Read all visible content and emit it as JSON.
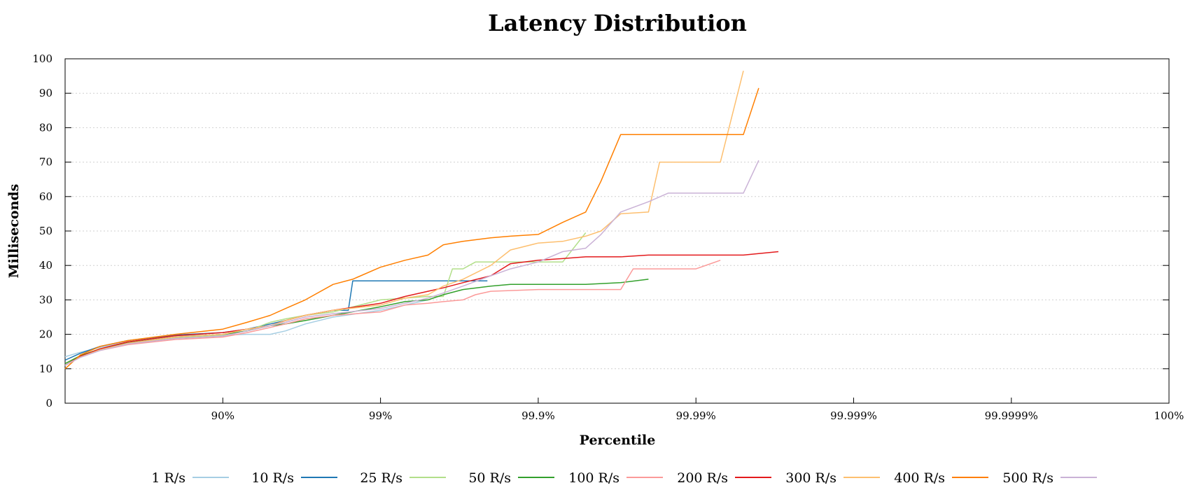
{
  "chart_data": {
    "type": "line",
    "title": "Latency Distribution",
    "xlabel": "Percentile",
    "ylabel": "Milliseconds",
    "x_scale": "log-percentile",
    "xlim": [
      "0%",
      "100%"
    ],
    "ylim": [
      0,
      100
    ],
    "yticks": [
      0,
      10,
      20,
      30,
      40,
      50,
      60,
      70,
      80,
      90,
      100
    ],
    "x_tick_labels": [
      "90%",
      "99%",
      "99.9%",
      "99.99%",
      "99.999%",
      "99.9999%",
      "100%"
    ],
    "grid": "horizontal dotted",
    "legend_position": "bottom",
    "series": [
      {
        "name": "1 R/s",
        "color": "#a6cee3",
        "points": [
          [
            "0%",
            13.5
          ],
          [
            "20%",
            14.8
          ],
          [
            "40%",
            16.2
          ],
          [
            "60%",
            17.8
          ],
          [
            "80%",
            19.6
          ],
          [
            "90%",
            19.8
          ],
          [
            "93%",
            20.0
          ],
          [
            "95%",
            20.0
          ],
          [
            "96%",
            21.0
          ],
          [
            "97%",
            23.0
          ],
          [
            "98%",
            25.0
          ],
          [
            "99%",
            27.0
          ],
          [
            "99.3%",
            28.5
          ],
          [
            "99.5%",
            30.0
          ]
        ]
      },
      {
        "name": "10 R/s",
        "color": "#1f78b4",
        "points": [
          [
            "0%",
            12.5
          ],
          [
            "20%",
            14.5
          ],
          [
            "40%",
            16.5
          ],
          [
            "60%",
            18.2
          ],
          [
            "80%",
            19.8
          ],
          [
            "90%",
            20.5
          ],
          [
            "93%",
            21.5
          ],
          [
            "95%",
            23.0
          ],
          [
            "96%",
            24.0
          ],
          [
            "97%",
            25.5
          ],
          [
            "98%",
            27.0
          ],
          [
            "98.4%",
            27.0
          ],
          [
            "98.5%",
            35.5
          ],
          [
            "99%",
            35.5
          ],
          [
            "99.5%",
            35.5
          ],
          [
            "99.79%",
            35.5
          ]
        ]
      },
      {
        "name": "25 R/s",
        "color": "#b2df8a",
        "points": [
          [
            "0%",
            11.0
          ],
          [
            "20%",
            13.5
          ],
          [
            "40%",
            15.5
          ],
          [
            "60%",
            17.3
          ],
          [
            "80%",
            19.0
          ],
          [
            "90%",
            19.6
          ],
          [
            "93%",
            21.0
          ],
          [
            "95%",
            23.5
          ],
          [
            "96%",
            24.5
          ],
          [
            "97%",
            25.5
          ],
          [
            "98%",
            26.5
          ],
          [
            "99%",
            30.0
          ],
          [
            "99.3%",
            30.5
          ],
          [
            "99.5%",
            31.0
          ],
          [
            "99.6%",
            31.0
          ],
          [
            "99.65%",
            39.0
          ],
          [
            "99.7%",
            39.0
          ],
          [
            "99.75%",
            41.0
          ],
          [
            "99.85%",
            41.0
          ],
          [
            "99.9%",
            41.0
          ],
          [
            "99.93%",
            41.0
          ],
          [
            "99.95%",
            49.5
          ]
        ]
      },
      {
        "name": "50 R/s",
        "color": "#33a02c",
        "points": [
          [
            "0%",
            11.5
          ],
          [
            "20%",
            13.8
          ],
          [
            "40%",
            15.8
          ],
          [
            "60%",
            17.5
          ],
          [
            "80%",
            19.2
          ],
          [
            "90%",
            20.0
          ],
          [
            "93%",
            21.0
          ],
          [
            "95%",
            22.5
          ],
          [
            "96%",
            23.0
          ],
          [
            "97%",
            24.0
          ],
          [
            "98%",
            25.5
          ],
          [
            "99%",
            28.0
          ],
          [
            "99.3%",
            29.5
          ],
          [
            "99.5%",
            30.0
          ],
          [
            "99.6%",
            31.5
          ],
          [
            "99.7%",
            33.0
          ],
          [
            "99.8%",
            34.0
          ],
          [
            "99.85%",
            34.5
          ],
          [
            "99.9%",
            34.5
          ],
          [
            "99.95%",
            34.5
          ],
          [
            "99.97%",
            35.0
          ],
          [
            "99.98%",
            36.0
          ]
        ]
      },
      {
        "name": "100 R/s",
        "color": "#fb9a99",
        "points": [
          [
            "0%",
            11.0
          ],
          [
            "20%",
            13.5
          ],
          [
            "40%",
            15.3
          ],
          [
            "60%",
            17.0
          ],
          [
            "80%",
            18.5
          ],
          [
            "90%",
            19.2
          ],
          [
            "93%",
            20.5
          ],
          [
            "95%",
            22.0
          ],
          [
            "96%",
            23.0
          ],
          [
            "97%",
            24.5
          ],
          [
            "98%",
            25.5
          ],
          [
            "99%",
            26.5
          ],
          [
            "99.3%",
            28.5
          ],
          [
            "99.5%",
            29.0
          ],
          [
            "99.6%",
            29.5
          ],
          [
            "99.7%",
            30.0
          ],
          [
            "99.75%",
            31.5
          ],
          [
            "99.8%",
            32.5
          ],
          [
            "99.9%",
            33.0
          ],
          [
            "99.95%",
            33.0
          ],
          [
            "99.97%",
            33.0
          ],
          [
            "99.975%",
            39.0
          ],
          [
            "99.985%",
            39.0
          ],
          [
            "99.99%",
            39.0
          ],
          [
            "99.993%",
            41.5
          ]
        ]
      },
      {
        "name": "200 R/s",
        "color": "#e31a1c",
        "points": [
          [
            "0%",
            11.0
          ],
          [
            "20%",
            13.6
          ],
          [
            "40%",
            15.8
          ],
          [
            "60%",
            17.8
          ],
          [
            "80%",
            19.6
          ],
          [
            "90%",
            20.5
          ],
          [
            "93%",
            21.5
          ],
          [
            "95%",
            22.5
          ],
          [
            "96%",
            24.0
          ],
          [
            "97%",
            25.5
          ],
          [
            "98%",
            27.0
          ],
          [
            "99%",
            29.0
          ],
          [
            "99.3%",
            31.0
          ],
          [
            "99.5%",
            32.5
          ],
          [
            "99.6%",
            33.5
          ],
          [
            "99.7%",
            35.0
          ],
          [
            "99.8%",
            37.0
          ],
          [
            "99.85%",
            40.5
          ],
          [
            "99.9%",
            41.5
          ],
          [
            "99.93%",
            42.0
          ],
          [
            "99.95%",
            42.5
          ],
          [
            "99.97%",
            42.5
          ],
          [
            "99.98%",
            43.0
          ],
          [
            "99.99%",
            43.0
          ],
          [
            "99.995%",
            43.0
          ],
          [
            "99.997%",
            44.0
          ]
        ]
      },
      {
        "name": "300 R/s",
        "color": "#fdbf6f",
        "points": [
          [
            "0%",
            11.0
          ],
          [
            "20%",
            13.4
          ],
          [
            "40%",
            15.5
          ],
          [
            "60%",
            17.4
          ],
          [
            "80%",
            19.2
          ],
          [
            "90%",
            20.0
          ],
          [
            "93%",
            21.5
          ],
          [
            "95%",
            22.5
          ],
          [
            "96%",
            24.0
          ],
          [
            "97%",
            25.5
          ],
          [
            "98%",
            27.0
          ],
          [
            "99%",
            28.5
          ],
          [
            "99.3%",
            30.5
          ],
          [
            "99.5%",
            31.5
          ],
          [
            "99.6%",
            34.0
          ],
          [
            "99.7%",
            36.0
          ],
          [
            "99.8%",
            40.0
          ],
          [
            "99.85%",
            44.5
          ],
          [
            "99.9%",
            46.5
          ],
          [
            "99.93%",
            47.0
          ],
          [
            "99.95%",
            48.5
          ],
          [
            "99.96%",
            50.0
          ],
          [
            "99.97%",
            55.0
          ],
          [
            "99.98%",
            55.5
          ],
          [
            "99.983%",
            70.0
          ],
          [
            "99.99%",
            70.0
          ],
          [
            "99.993%",
            70.0
          ],
          [
            "99.995%",
            96.5
          ]
        ]
      },
      {
        "name": "400 R/s",
        "color": "#ff7f00",
        "points": [
          [
            "0%",
            10.0
          ],
          [
            "20%",
            14.0
          ],
          [
            "40%",
            16.5
          ],
          [
            "60%",
            18.2
          ],
          [
            "80%",
            20.0
          ],
          [
            "90%",
            21.5
          ],
          [
            "93%",
            23.5
          ],
          [
            "95%",
            25.5
          ],
          [
            "96%",
            27.5
          ],
          [
            "97%",
            30.0
          ],
          [
            "98%",
            34.5
          ],
          [
            "98.5%",
            36.0
          ],
          [
            "99%",
            39.5
          ],
          [
            "99.3%",
            41.5
          ],
          [
            "99.5%",
            43.0
          ],
          [
            "99.6%",
            46.0
          ],
          [
            "99.7%",
            47.0
          ],
          [
            "99.8%",
            48.0
          ],
          [
            "99.85%",
            48.5
          ],
          [
            "99.9%",
            49.0
          ],
          [
            "99.93%",
            52.5
          ],
          [
            "99.95%",
            55.5
          ],
          [
            "99.96%",
            64.5
          ],
          [
            "99.97%",
            78.0
          ],
          [
            "99.98%",
            78.0
          ],
          [
            "99.99%",
            78.0
          ],
          [
            "99.995%",
            78.0
          ],
          [
            "99.996%",
            91.5
          ]
        ]
      },
      {
        "name": "500 R/s",
        "color": "#cab2d6",
        "points": [
          [
            "0%",
            11.0
          ],
          [
            "20%",
            13.3
          ],
          [
            "40%",
            15.3
          ],
          [
            "60%",
            17.2
          ],
          [
            "80%",
            18.8
          ],
          [
            "90%",
            19.5
          ],
          [
            "93%",
            21.0
          ],
          [
            "95%",
            22.5
          ],
          [
            "96%",
            23.5
          ],
          [
            "97%",
            25.0
          ],
          [
            "98%",
            26.0
          ],
          [
            "99%",
            27.5
          ],
          [
            "99.3%",
            29.0
          ],
          [
            "99.5%",
            30.5
          ],
          [
            "99.6%",
            32.0
          ],
          [
            "99.7%",
            34.0
          ],
          [
            "99.8%",
            37.0
          ],
          [
            "99.85%",
            39.0
          ],
          [
            "99.9%",
            41.0
          ],
          [
            "99.93%",
            44.0
          ],
          [
            "99.95%",
            45.0
          ],
          [
            "99.96%",
            49.0
          ],
          [
            "99.97%",
            55.5
          ],
          [
            "99.98%",
            58.5
          ],
          [
            "99.985%",
            61.0
          ],
          [
            "99.99%",
            61.0
          ],
          [
            "99.995%",
            61.0
          ],
          [
            "99.996%",
            70.5
          ]
        ]
      }
    ]
  }
}
